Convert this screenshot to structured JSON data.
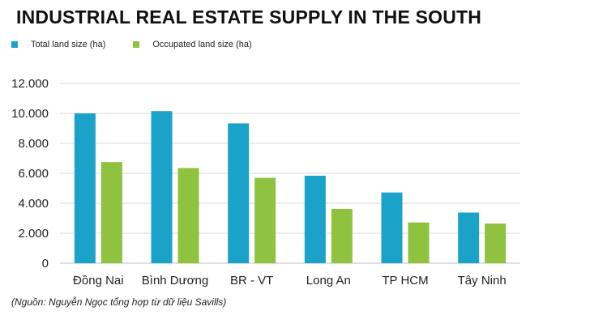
{
  "title": "INDUSTRIAL REAL ESTATE SUPPLY IN THE SOUTH",
  "source": "(Nguồn: Nguyễn Ngọc tổng hợp từ dữ liệu Savills)",
  "colors": {
    "total": "#1aa2c8",
    "occupied": "#8ec23f",
    "grid": "#d9d9d9",
    "axis": "#bfbfbf"
  },
  "chart_data": {
    "type": "bar",
    "title": "INDUSTRIAL REAL ESTATE SUPPLY IN THE SOUTH",
    "xlabel": "",
    "ylabel": "",
    "ylim": [
      0,
      12000
    ],
    "yticks": [
      0,
      2000,
      4000,
      6000,
      8000,
      10000,
      12000
    ],
    "ytick_labels": [
      "0",
      "2.000",
      "4.000",
      "6.000",
      "8.000",
      "10.000",
      "12.000"
    ],
    "grid": true,
    "legend_position": "top-left",
    "categories": [
      "Đồng Nai",
      "Bình Dương",
      "BR - VT",
      "Long An",
      "TP HCM",
      "Tây Ninh"
    ],
    "series": [
      {
        "name": "Total land size (ha)",
        "color": "#1aa2c8",
        "values": [
          10000,
          10150,
          9330,
          5840,
          4720,
          3380
        ]
      },
      {
        "name": "Occupated land size (ha)",
        "color": "#8ec23f",
        "values": [
          6750,
          6350,
          5700,
          3620,
          2720,
          2650
        ]
      }
    ]
  }
}
